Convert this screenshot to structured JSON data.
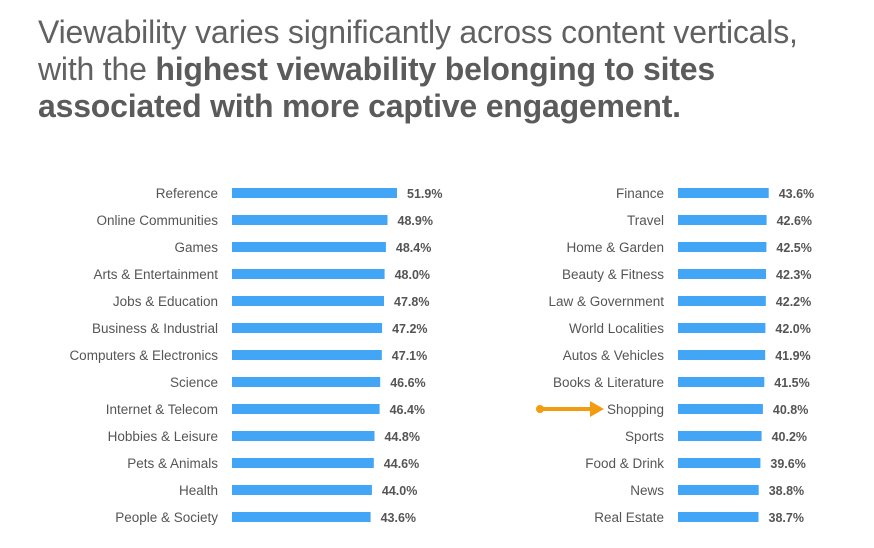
{
  "headline": {
    "line1": "Viewability varies significantly across content verticals,",
    "line2_prefix": "with the ",
    "line2_bold": "highest viewability belonging to sites",
    "line3_bold": "associated with more captive engagement."
  },
  "colors": {
    "bar": "#42a5f5",
    "highlight_arrow": "#f39c12",
    "text": "#555555"
  },
  "chart_data": [
    {
      "type": "bar",
      "orientation": "horizontal",
      "categories": [
        "Reference",
        "Online Communities",
        "Games",
        "Arts & Entertainment",
        "Jobs & Education",
        "Business & Industrial",
        "Computers & Electronics",
        "Science",
        "Internet & Telecom",
        "Hobbies & Leisure",
        "Pets & Animals",
        "Health",
        "People & Society"
      ],
      "values": [
        51.9,
        48.9,
        48.4,
        48.0,
        47.8,
        47.2,
        47.1,
        46.6,
        46.4,
        44.8,
        44.6,
        44.0,
        43.6
      ],
      "value_labels": [
        "51.9%",
        "48.9%",
        "48.4%",
        "48.0%",
        "47.8%",
        "47.2%",
        "47.1%",
        "46.6%",
        "46.4%",
        "44.8%",
        "44.6%",
        "44.0%",
        "43.6%"
      ],
      "highlight": null
    },
    {
      "type": "bar",
      "orientation": "horizontal",
      "categories": [
        "Finance",
        "Travel",
        "Home & Garden",
        "Beauty & Fitness",
        "Law & Government",
        "World Localities",
        "Autos & Vehicles",
        "Books & Literature",
        "Shopping",
        "Sports",
        "Food & Drink",
        "News",
        "Real Estate"
      ],
      "values": [
        43.6,
        42.6,
        42.5,
        42.3,
        42.2,
        42.0,
        41.9,
        41.5,
        40.8,
        40.2,
        39.6,
        38.8,
        38.7
      ],
      "value_labels": [
        "43.6%",
        "42.6%",
        "42.5%",
        "42.3%",
        "42.2%",
        "42.0%",
        "41.9%",
        "41.5%",
        "40.8%",
        "40.2%",
        "39.6%",
        "38.8%",
        "38.7%"
      ],
      "highlight": "Shopping"
    }
  ]
}
